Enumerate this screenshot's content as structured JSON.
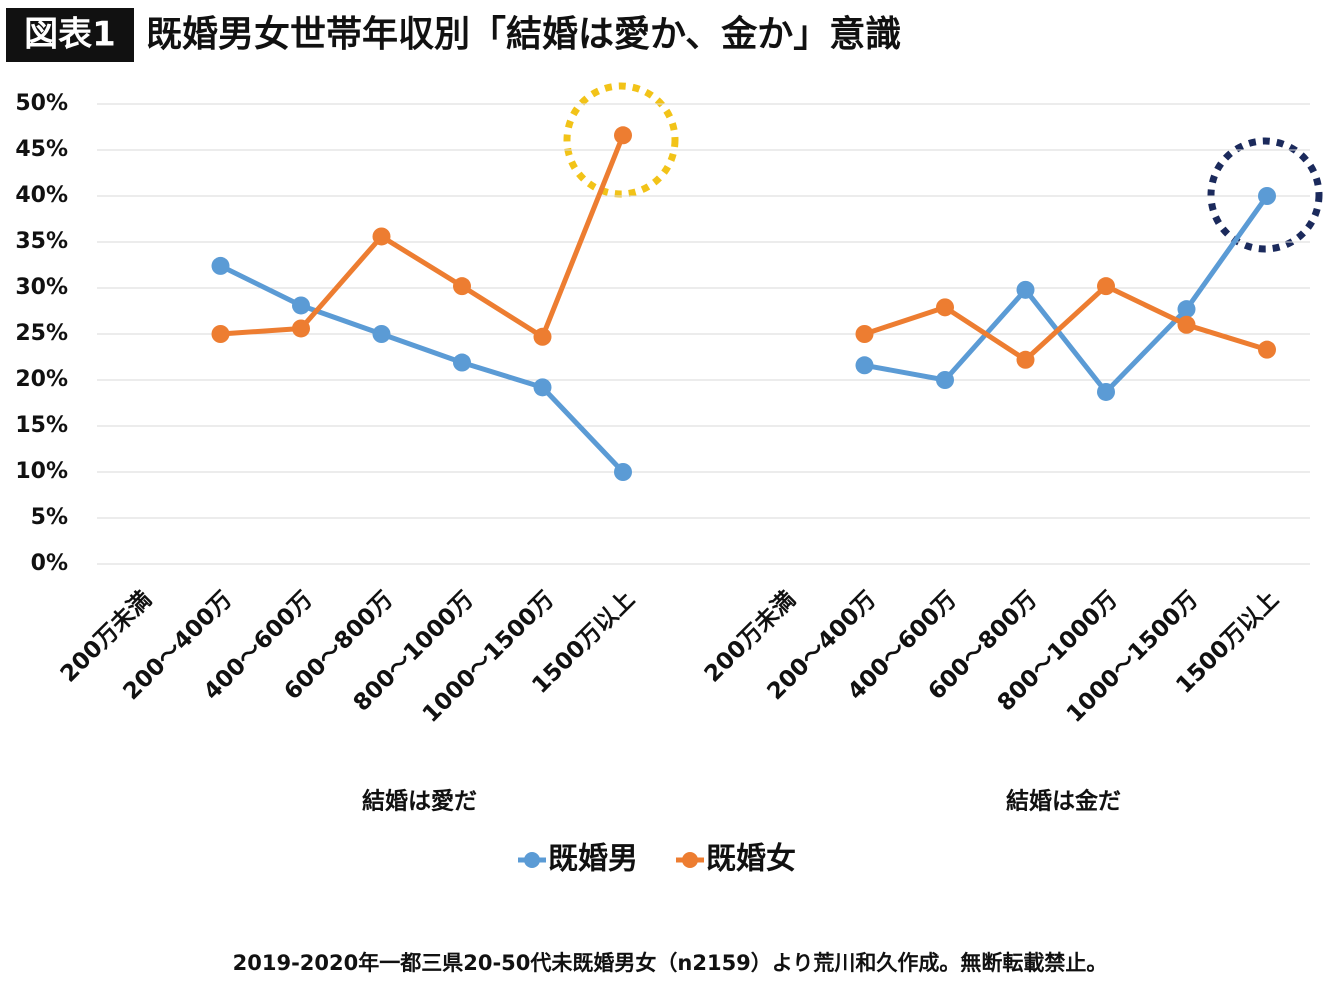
{
  "chart_data": {
    "type": "line",
    "label": "図表1",
    "title": "既婚男女世帯年収別「結婚は愛か、金か」意識",
    "categories": [
      "200万未満",
      "200～400万",
      "400～600万",
      "600～800万",
      "800～1000万",
      "1000～1500万",
      "1500万以上",
      null,
      "200万未満",
      "200～400万",
      "400～600万",
      "600～800万",
      "800～1000万",
      "1000～1500万",
      "1500万以上"
    ],
    "group_labels": [
      "結婚は愛だ",
      "結婚は金だ"
    ],
    "series": [
      {
        "name": "既婚男",
        "color": "#5b9bd5",
        "values": [
          null,
          32.4,
          28.1,
          25.0,
          21.9,
          19.2,
          10.0,
          null,
          null,
          21.6,
          20.0,
          29.8,
          18.7,
          27.7,
          40.0
        ]
      },
      {
        "name": "既婚女",
        "color": "#ed7d31",
        "values": [
          null,
          25.0,
          25.6,
          35.6,
          30.2,
          24.7,
          46.6,
          null,
          null,
          25.0,
          27.9,
          22.2,
          30.2,
          26.0,
          23.3
        ]
      }
    ],
    "ylim": [
      0,
      50
    ],
    "yticks": [
      {
        "value": 0,
        "label": "0%"
      },
      {
        "value": 5,
        "label": "5%"
      },
      {
        "value": 10,
        "label": "10%"
      },
      {
        "value": 15,
        "label": "15%"
      },
      {
        "value": 20,
        "label": "20%"
      },
      {
        "value": 25,
        "label": "25%"
      },
      {
        "value": 30,
        "label": "30%"
      },
      {
        "value": 35,
        "label": "35%"
      },
      {
        "value": 40,
        "label": "40%"
      },
      {
        "value": 45,
        "label": "45%"
      },
      {
        "value": 50,
        "label": "50%"
      }
    ],
    "grid": true,
    "legend": "bottom",
    "source": "2019-2020年一都三県20-50代未既婚男女（n2159）より荒川和久作成。無断転載禁止。"
  }
}
